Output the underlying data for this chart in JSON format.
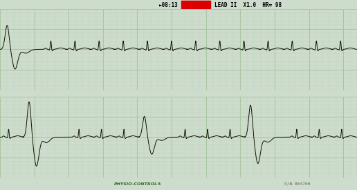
{
  "title_text": "►08:13",
  "lead_info": "LEAD II  X1.0  HR= 98",
  "bottom_left": "PHYSIO-CONTROL®",
  "bottom_right": "P/N 804700",
  "bg_color": "#cddccc",
  "grid_major_color": "#a8c4a0",
  "grid_minor_color": "#bdd4ba",
  "ecg_color": "#111100",
  "red_rect_color": "#dd0000",
  "header_bg": "#cddccc",
  "white_gap_color": "#f0f0f0",
  "footer_bg": "#cddccc",
  "figsize": [
    5.16,
    2.75
  ],
  "dpi": 100
}
